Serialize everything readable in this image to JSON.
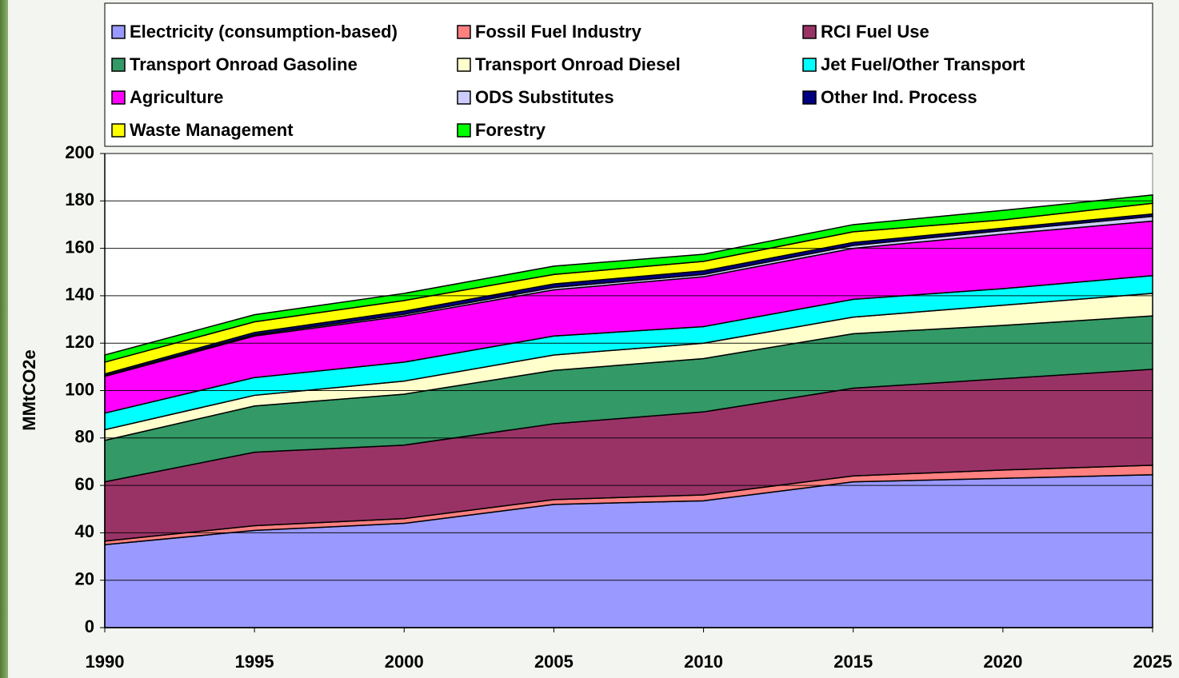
{
  "chart_data": {
    "type": "stacked_area",
    "y_label": "MMtCO2e",
    "x": [
      1990,
      1995,
      2000,
      2005,
      2010,
      2015,
      2020,
      2025
    ],
    "xlim": [
      1990,
      2025
    ],
    "xticks": [
      1990,
      1995,
      2000,
      2005,
      2010,
      2015,
      2020,
      2025
    ],
    "ylim": [
      0,
      200
    ],
    "yticks": [
      0,
      20,
      40,
      60,
      80,
      100,
      120,
      140,
      160,
      180,
      200
    ],
    "grid": true,
    "legend": "top",
    "series": [
      {
        "name": "Electricity (consumption-based)",
        "color": "#9999ff",
        "values": [
          35,
          41,
          44,
          52,
          53.5,
          61.5,
          63,
          64.5
        ]
      },
      {
        "name": "Fossil Fuel Industry",
        "color": "#ff8080",
        "values": [
          1.5,
          2,
          2,
          2,
          2.5,
          2.5,
          3.5,
          4
        ]
      },
      {
        "name": "RCI Fuel Use",
        "color": "#993366",
        "values": [
          25,
          31,
          31,
          32,
          35,
          37,
          38.5,
          40.5
        ]
      },
      {
        "name": "Transport Onroad Gasoline",
        "color": "#339966",
        "values": [
          17.5,
          19.5,
          21.5,
          22.5,
          22.5,
          23,
          22.5,
          22.5
        ]
      },
      {
        "name": "Transport Onroad Diesel",
        "color": "#ffffcc",
        "values": [
          4.5,
          4.5,
          5.5,
          6.5,
          6.5,
          7,
          8.5,
          9.5
        ]
      },
      {
        "name": "Jet Fuel/Other Transport",
        "color": "#00ffff",
        "values": [
          7,
          7.5,
          8,
          8,
          7,
          7.5,
          7,
          7.5
        ]
      },
      {
        "name": "Agriculture",
        "color": "#ff00ff",
        "values": [
          15.5,
          17.5,
          19.5,
          19.5,
          21,
          21.5,
          23,
          23
        ]
      },
      {
        "name": "ODS Substitutes",
        "color": "#ccccff",
        "values": [
          0.3,
          0.5,
          0.7,
          1,
          1,
          1.2,
          1.5,
          2
        ]
      },
      {
        "name": "Other Ind. Process",
        "color": "#000080",
        "values": [
          0.7,
          1,
          1.3,
          1.5,
          1.5,
          1.3,
          1,
          1
        ]
      },
      {
        "name": "Waste Management",
        "color": "#ffff00",
        "values": [
          5,
          4.5,
          4.5,
          4,
          4,
          4.5,
          3.5,
          4.5
        ]
      },
      {
        "name": "Forestry",
        "color": "#00ff00",
        "values": [
          3,
          3,
          3,
          3.5,
          3,
          3,
          4,
          3.5
        ]
      }
    ]
  }
}
